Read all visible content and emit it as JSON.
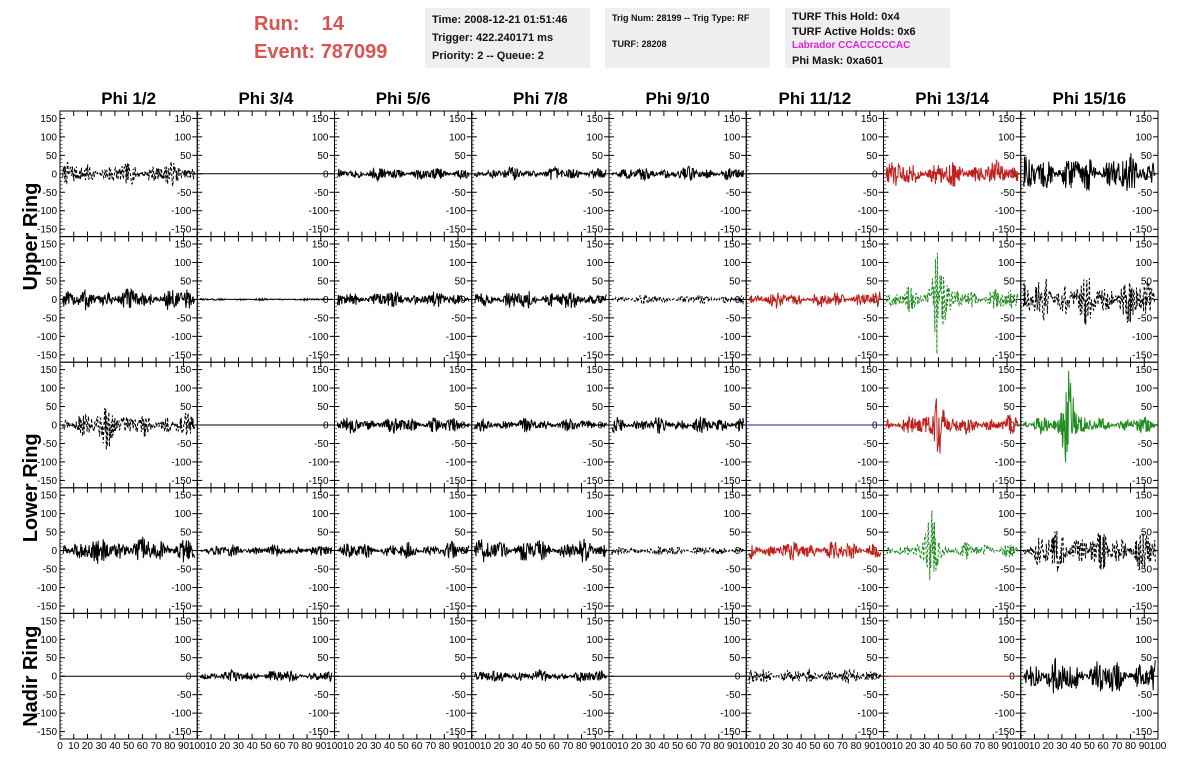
{
  "header": {
    "run_label": "Run:",
    "run_value": "14",
    "event_label": "Event:",
    "event_value": "787099",
    "time": "Time: 2008-12-21 01:51:46",
    "trigger": "Trigger: 422.240171 ms",
    "priority": "Priority: 2 -- Queue: 2",
    "trig_num": "Trig Num: 28199 -- Trig Type: RF",
    "turf": "TURF: 28208",
    "turf_hold": "TURF This Hold: 0x4",
    "turf_active": "TURF Active Holds: 0x6",
    "labrador": "Labrador CCACCCCCAC",
    "phi_mask": "Phi Mask: 0xa601",
    "run_color": "#d9534f",
    "labrador_color": "#e020e0"
  },
  "chart_data": {
    "type": "line",
    "columns": [
      "Phi 1/2",
      "Phi 3/4",
      "Phi 5/6",
      "Phi 7/8",
      "Phi 9/10",
      "Phi 11/12",
      "Phi 13/14",
      "Phi 15/16"
    ],
    "ring_labels": [
      {
        "name": "Upper Ring",
        "rows": [
          0,
          1
        ]
      },
      {
        "name": "Lower Ring",
        "rows": [
          2,
          3
        ]
      },
      {
        "name": "Nadir Ring",
        "rows": [
          4
        ]
      }
    ],
    "ylim": [
      -170,
      170
    ],
    "yticks": [
      -150,
      -100,
      -50,
      0,
      50,
      100,
      150
    ],
    "xlim": [
      0,
      100
    ],
    "xticks": [
      0,
      10,
      20,
      30,
      40,
      50,
      60,
      70,
      80,
      90,
      100
    ],
    "colors": {
      "black": "#000000",
      "red": "#c0201c",
      "green": "#1e8c1e",
      "blue": "#1a1aa0"
    },
    "panels": [
      [
        {
          "color": "black",
          "dashed": true,
          "amp": 35
        },
        {
          "color": "black",
          "dashed": false,
          "amp": 0
        },
        {
          "color": "black",
          "dashed": false,
          "amp": 20
        },
        {
          "color": "black",
          "dashed": false,
          "amp": 20
        },
        {
          "color": "black",
          "dashed": false,
          "amp": 22
        },
        {
          "color": "black",
          "dashed": false,
          "amp": 0
        },
        {
          "color": "red",
          "dashed": false,
          "amp": 40
        },
        {
          "color": "black",
          "dashed": false,
          "amp": 60
        }
      ],
      [
        {
          "color": "black",
          "dashed": false,
          "amp": 35
        },
        {
          "color": "black",
          "dashed": false,
          "amp": 3
        },
        {
          "color": "black",
          "dashed": false,
          "amp": 25
        },
        {
          "color": "black",
          "dashed": false,
          "amp": 30
        },
        {
          "color": "black",
          "dashed": true,
          "amp": 14
        },
        {
          "color": "red",
          "dashed": false,
          "amp": 25
        },
        {
          "color": "green",
          "dashed": true,
          "amp": 35,
          "burst": 40,
          "burst_amp": 150
        },
        {
          "color": "black",
          "dashed": true,
          "amp": 70
        }
      ],
      [
        {
          "color": "black",
          "dashed": true,
          "amp": 35,
          "burst": 35,
          "burst_amp": 60
        },
        {
          "color": "black",
          "dashed": false,
          "amp": 0
        },
        {
          "color": "black",
          "dashed": false,
          "amp": 25
        },
        {
          "color": "black",
          "dashed": false,
          "amp": 20
        },
        {
          "color": "black",
          "dashed": false,
          "amp": 25
        },
        {
          "color": "blue",
          "dashed": false,
          "amp": 0
        },
        {
          "color": "red",
          "dashed": false,
          "amp": 30,
          "burst": 40,
          "burst_amp": 85
        },
        {
          "color": "green",
          "dashed": false,
          "amp": 25,
          "burst": 35,
          "burst_amp": 150
        }
      ],
      [
        {
          "color": "black",
          "dashed": false,
          "amp": 40
        },
        {
          "color": "black",
          "dashed": false,
          "amp": 18
        },
        {
          "color": "black",
          "dashed": false,
          "amp": 25
        },
        {
          "color": "black",
          "dashed": false,
          "amp": 35
        },
        {
          "color": "black",
          "dashed": true,
          "amp": 14
        },
        {
          "color": "red",
          "dashed": false,
          "amp": 30
        },
        {
          "color": "green",
          "dashed": true,
          "amp": 25,
          "burst": 35,
          "burst_amp": 100
        },
        {
          "color": "black",
          "dashed": true,
          "amp": 60
        }
      ],
      [
        {
          "color": "black",
          "dashed": false,
          "amp": 0
        },
        {
          "color": "black",
          "dashed": false,
          "amp": 18
        },
        {
          "color": "black",
          "dashed": false,
          "amp": 0
        },
        {
          "color": "black",
          "dashed": false,
          "amp": 20
        },
        {
          "color": "black",
          "dashed": false,
          "amp": 0
        },
        {
          "color": "black",
          "dashed": true,
          "amp": 25
        },
        {
          "color": "red",
          "dashed": false,
          "amp": 0
        },
        {
          "color": "black",
          "dashed": false,
          "amp": 55
        }
      ]
    ]
  }
}
